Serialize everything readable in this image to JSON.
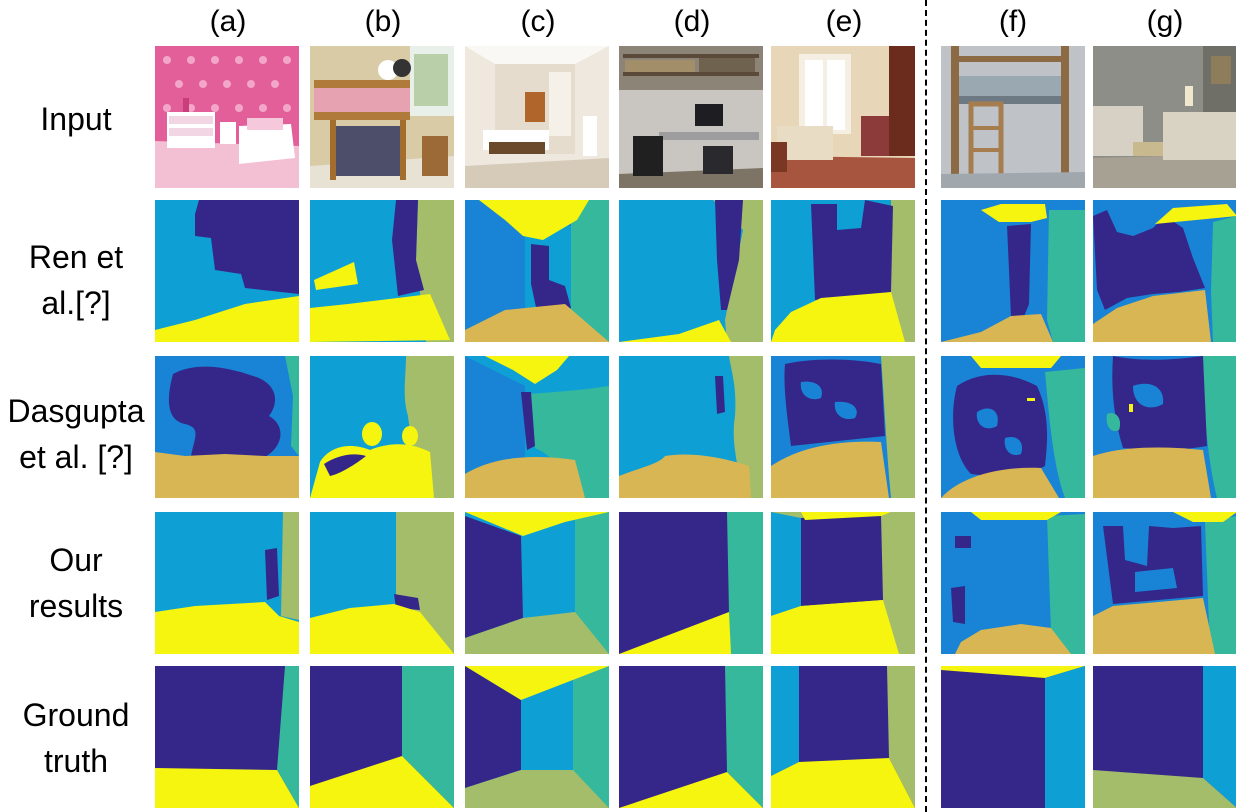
{
  "columns": [
    "(a)",
    "(b)",
    "(c)",
    "(d)",
    "(e)",
    "(f)",
    "(g)"
  ],
  "rows": [
    {
      "lines": [
        "Input"
      ]
    },
    {
      "lines": [
        "Ren et",
        "al.[?]"
      ]
    },
    {
      "lines": [
        "Dasgupta",
        "et al. [?]"
      ]
    },
    {
      "lines": [
        "Our",
        "results"
      ]
    },
    {
      "lines": [
        "Ground",
        "truth"
      ]
    }
  ],
  "palette": {
    "ceiling": "#f6f50f",
    "floor_tan": "#d9b654",
    "front_wall": "#35278a",
    "left_wall": "#1984d5",
    "center_wall": "#0ea0d4",
    "right_wall_teal": "#36b89c",
    "right_wall_green": "#a4bd6a"
  }
}
